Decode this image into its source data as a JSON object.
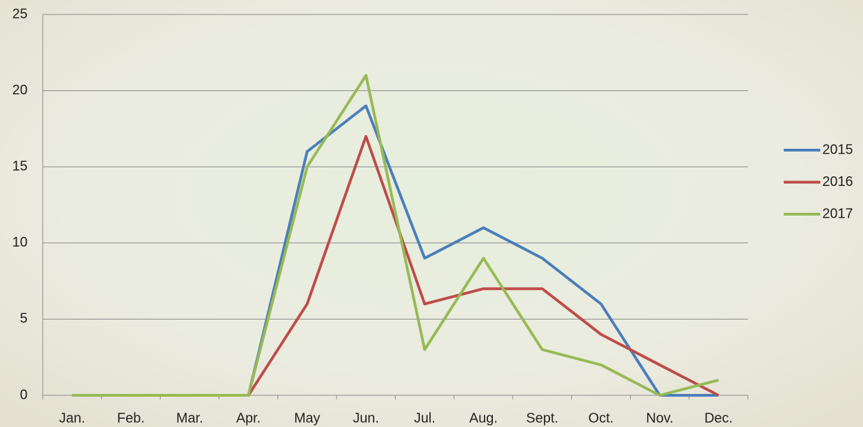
{
  "chart_data": {
    "type": "line",
    "categories": [
      "Jan.",
      "Feb.",
      "Mar.",
      "Apr.",
      "May",
      "Jun.",
      "Jul.",
      "Aug.",
      "Sept.",
      "Oct.",
      "Nov.",
      "Dec."
    ],
    "series": [
      {
        "name": "2015",
        "color": "#4a7ebb",
        "values": [
          0,
          0,
          0,
          0,
          16,
          19,
          9,
          11,
          9,
          6,
          0,
          0
        ]
      },
      {
        "name": "2016",
        "color": "#be4b48",
        "values": [
          0,
          0,
          0,
          0,
          6,
          17,
          6,
          7,
          7,
          4,
          2,
          0
        ]
      },
      {
        "name": "2017",
        "color": "#98b954",
        "values": [
          0,
          0,
          0,
          0,
          15,
          21,
          3,
          9,
          3,
          2,
          0,
          1
        ]
      }
    ],
    "ylim": [
      0,
      25
    ],
    "yticks": [
      0,
      5,
      10,
      15,
      20,
      25
    ],
    "grid": true,
    "legend": "right"
  }
}
